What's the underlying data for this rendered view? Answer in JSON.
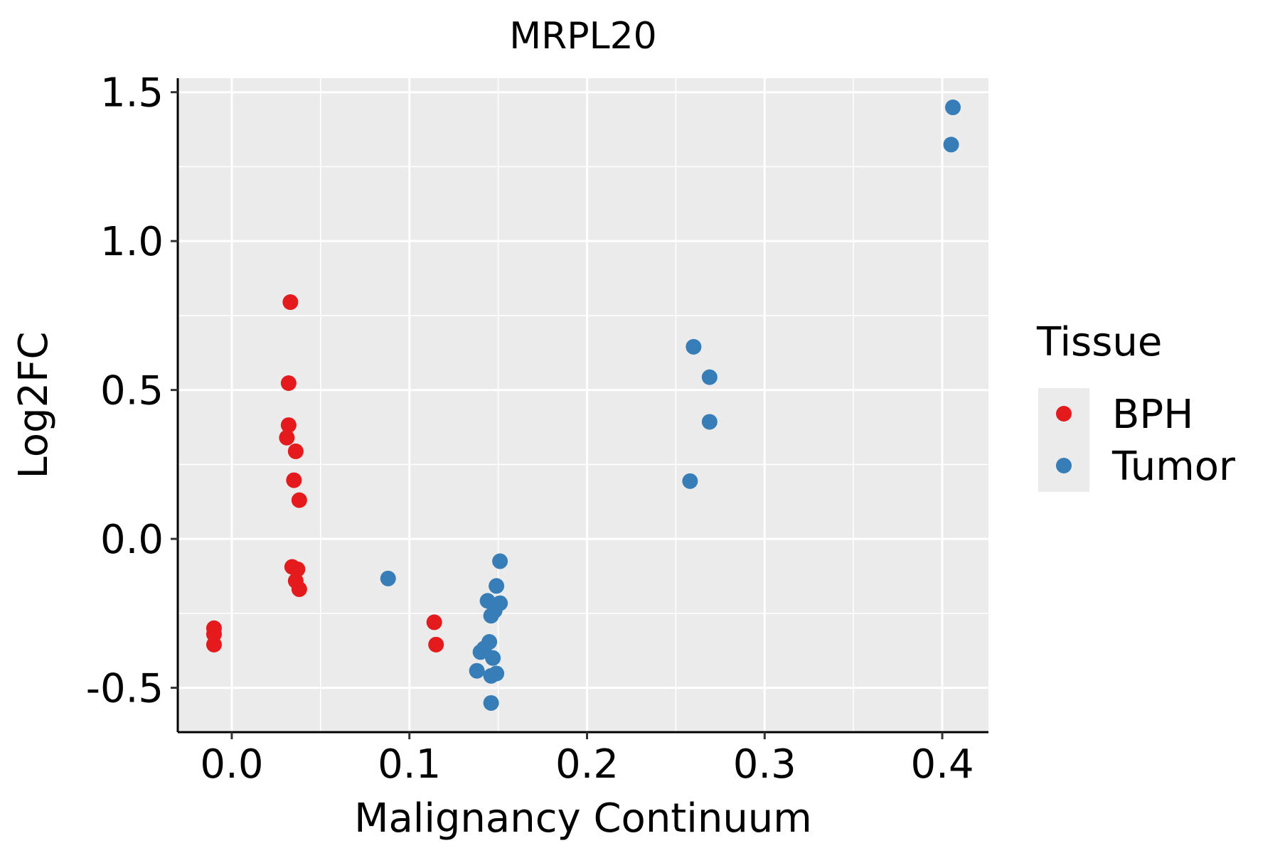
{
  "chart_data": {
    "type": "scatter",
    "title": "MRPL20",
    "xlabel": "Malignancy Continuum",
    "ylabel": "Log2FC",
    "xlim": [
      -0.0304,
      0.426
    ],
    "ylim": [
      -0.649,
      1.547
    ],
    "xticks": [
      0.0,
      0.1,
      0.2,
      0.3,
      0.4
    ],
    "xtick_labels": [
      "0.0",
      "0.1",
      "0.2",
      "0.3",
      "0.4"
    ],
    "yticks": [
      -0.5,
      0.0,
      0.5,
      1.0,
      1.5
    ],
    "ytick_labels": [
      "-0.5",
      "0.0",
      "0.5",
      "1.0",
      "1.5"
    ],
    "grid": true,
    "legend": {
      "title": "Tissue",
      "placement": "right"
    },
    "series": [
      {
        "name": "BPH",
        "color": "#E41A1C",
        "points": [
          [
            -0.01,
            -0.3
          ],
          [
            -0.01,
            -0.32
          ],
          [
            -0.01,
            -0.355
          ],
          [
            0.033,
            0.795
          ],
          [
            0.032,
            0.523
          ],
          [
            0.032,
            0.382
          ],
          [
            0.031,
            0.34
          ],
          [
            0.036,
            0.294
          ],
          [
            0.035,
            0.197
          ],
          [
            0.038,
            0.13
          ],
          [
            0.034,
            -0.094
          ],
          [
            0.037,
            -0.102
          ],
          [
            0.036,
            -0.141
          ],
          [
            0.038,
            -0.169
          ],
          [
            0.114,
            -0.28
          ],
          [
            0.115,
            -0.355
          ]
        ]
      },
      {
        "name": "Tumor",
        "color": "#377EB8",
        "points": [
          [
            0.088,
            -0.133
          ],
          [
            0.151,
            -0.075
          ],
          [
            0.149,
            -0.158
          ],
          [
            0.144,
            -0.208
          ],
          [
            0.151,
            -0.216
          ],
          [
            0.148,
            -0.241
          ],
          [
            0.146,
            -0.258
          ],
          [
            0.145,
            -0.346
          ],
          [
            0.142,
            -0.368
          ],
          [
            0.14,
            -0.38
          ],
          [
            0.147,
            -0.4
          ],
          [
            0.138,
            -0.443
          ],
          [
            0.149,
            -0.452
          ],
          [
            0.146,
            -0.46
          ],
          [
            0.146,
            -0.551
          ],
          [
            0.26,
            0.645
          ],
          [
            0.269,
            0.543
          ],
          [
            0.269,
            0.393
          ],
          [
            0.258,
            0.194
          ],
          [
            0.406,
            1.449
          ],
          [
            0.405,
            1.324
          ]
        ]
      }
    ]
  }
}
